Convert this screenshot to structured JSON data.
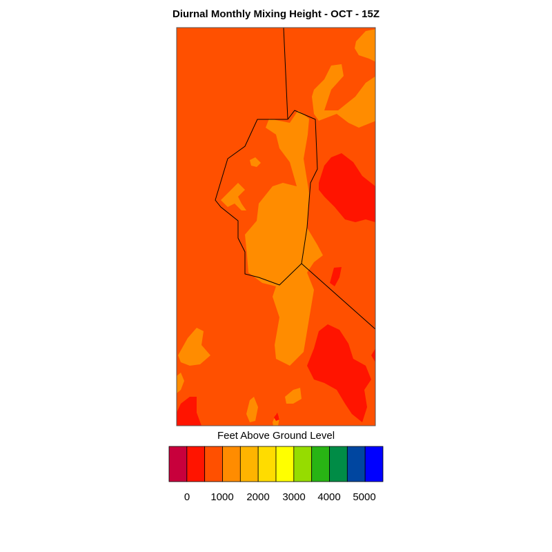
{
  "title": "Diurnal Monthly Mixing Height - OCT - 15Z",
  "colorbar": {
    "label": "Feet Above Ground Level",
    "colors": [
      "#c8003c",
      "#ff1400",
      "#ff5000",
      "#ff8c00",
      "#ffb400",
      "#ffdc00",
      "#ffff00",
      "#96dc00",
      "#28b414",
      "#008c46",
      "#0046a0",
      "#0000ff"
    ],
    "ticks": [
      "0",
      "1000",
      "2000",
      "3000",
      "4000",
      "5000"
    ]
  },
  "map": {
    "field_colors": {
      "background": "#ff5000",
      "orange": "#ff8c00",
      "red": "#ff1400"
    },
    "boundary_color": "#000000"
  }
}
